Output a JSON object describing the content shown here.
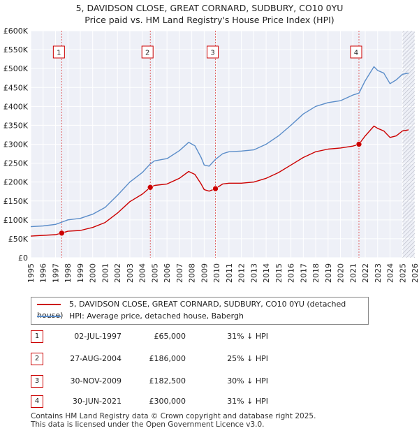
{
  "chart_data": {
    "type": "line",
    "title": "5, DAVIDSON CLOSE, GREAT CORNARD, SUDBURY, CO10 0YU",
    "subtitle": "Price paid vs. HM Land Registry's House Price Index (HPI)",
    "x_ticks": [
      "1995",
      "1996",
      "1997",
      "1998",
      "1999",
      "2000",
      "2001",
      "2002",
      "2003",
      "2004",
      "2005",
      "2006",
      "2007",
      "2008",
      "2009",
      "2010",
      "2011",
      "2012",
      "2013",
      "2014",
      "2015",
      "2016",
      "2017",
      "2018",
      "2019",
      "2020",
      "2021",
      "2022",
      "2023",
      "2024",
      "2025",
      "2026"
    ],
    "y_ticks": [
      "£0",
      "£50K",
      "£100K",
      "£150K",
      "£200K",
      "£250K",
      "£300K",
      "£350K",
      "£400K",
      "£450K",
      "£500K",
      "£550K",
      "£600K"
    ],
    "xlim": [
      1995,
      2026
    ],
    "ylim": [
      0,
      600000
    ],
    "series": [
      {
        "name": "5, DAVIDSON CLOSE, GREAT CORNARD, SUDBURY, CO10 0YU (detached house)",
        "color": "#cc0000",
        "points": [
          [
            1995.0,
            57000
          ],
          [
            1996.0,
            59000
          ],
          [
            1997.0,
            61000
          ],
          [
            1997.5,
            65000
          ],
          [
            1998.0,
            70000
          ],
          [
            1999.0,
            72000
          ],
          [
            2000.0,
            80000
          ],
          [
            2001.0,
            93000
          ],
          [
            2002.0,
            118000
          ],
          [
            2003.0,
            148000
          ],
          [
            2004.0,
            168000
          ],
          [
            2004.65,
            186000
          ],
          [
            2005.0,
            191000
          ],
          [
            2006.0,
            195000
          ],
          [
            2007.0,
            210000
          ],
          [
            2007.75,
            228000
          ],
          [
            2008.25,
            220000
          ],
          [
            2008.75,
            195000
          ],
          [
            2009.0,
            180000
          ],
          [
            2009.4,
            176000
          ],
          [
            2009.91,
            182500
          ],
          [
            2010.5,
            195000
          ],
          [
            2011.0,
            197000
          ],
          [
            2012.0,
            197000
          ],
          [
            2013.0,
            200000
          ],
          [
            2014.0,
            210000
          ],
          [
            2015.0,
            225000
          ],
          [
            2016.0,
            245000
          ],
          [
            2017.0,
            265000
          ],
          [
            2018.0,
            280000
          ],
          [
            2019.0,
            287000
          ],
          [
            2020.0,
            290000
          ],
          [
            2021.0,
            295000
          ],
          [
            2021.49,
            300000
          ],
          [
            2022.0,
            322000
          ],
          [
            2022.7,
            348000
          ],
          [
            2023.0,
            342000
          ],
          [
            2023.5,
            335000
          ],
          [
            2024.0,
            318000
          ],
          [
            2024.5,
            322000
          ],
          [
            2025.0,
            335000
          ],
          [
            2025.5,
            338000
          ]
        ]
      },
      {
        "name": "HPI: Average price, detached house, Babergh",
        "color": "#5b8dc9",
        "points": [
          [
            1995.0,
            82000
          ],
          [
            1996.0,
            84000
          ],
          [
            1997.0,
            88000
          ],
          [
            1997.5,
            94000
          ],
          [
            1998.0,
            100000
          ],
          [
            1999.0,
            104000
          ],
          [
            2000.0,
            115000
          ],
          [
            2001.0,
            133000
          ],
          [
            2002.0,
            165000
          ],
          [
            2003.0,
            200000
          ],
          [
            2004.0,
            225000
          ],
          [
            2004.65,
            248000
          ],
          [
            2005.0,
            256000
          ],
          [
            2006.0,
            262000
          ],
          [
            2007.0,
            283000
          ],
          [
            2007.75,
            305000
          ],
          [
            2008.25,
            296000
          ],
          [
            2008.75,
            265000
          ],
          [
            2009.0,
            245000
          ],
          [
            2009.4,
            242000
          ],
          [
            2009.91,
            260000
          ],
          [
            2010.5,
            275000
          ],
          [
            2011.0,
            280000
          ],
          [
            2012.0,
            282000
          ],
          [
            2013.0,
            285000
          ],
          [
            2014.0,
            300000
          ],
          [
            2015.0,
            322000
          ],
          [
            2016.0,
            350000
          ],
          [
            2017.0,
            380000
          ],
          [
            2018.0,
            400000
          ],
          [
            2019.0,
            410000
          ],
          [
            2020.0,
            415000
          ],
          [
            2021.0,
            430000
          ],
          [
            2021.49,
            435000
          ],
          [
            2022.0,
            468000
          ],
          [
            2022.7,
            505000
          ],
          [
            2023.0,
            495000
          ],
          [
            2023.5,
            488000
          ],
          [
            2024.0,
            460000
          ],
          [
            2024.5,
            470000
          ],
          [
            2025.0,
            485000
          ],
          [
            2025.5,
            488000
          ]
        ]
      }
    ],
    "sales": [
      {
        "label": "1",
        "x": 1997.5,
        "price": 65000
      },
      {
        "label": "2",
        "x": 2004.65,
        "price": 186000
      },
      {
        "label": "3",
        "x": 2009.91,
        "price": 182500
      },
      {
        "label": "4",
        "x": 2021.49,
        "price": 300000
      }
    ],
    "hatch_start": 2025.0
  },
  "legend": {
    "red_label": "5, DAVIDSON CLOSE, GREAT CORNARD, SUDBURY, CO10 0YU (detached house)",
    "blue_label": "HPI: Average price, detached house, Babergh"
  },
  "transactions": [
    {
      "num": "1",
      "date": "02-JUL-1997",
      "price": "£65,000",
      "hpi": "31% ↓ HPI"
    },
    {
      "num": "2",
      "date": "27-AUG-2004",
      "price": "£186,000",
      "hpi": "25% ↓ HPI"
    },
    {
      "num": "3",
      "date": "30-NOV-2009",
      "price": "£182,500",
      "hpi": "30% ↓ HPI"
    },
    {
      "num": "4",
      "date": "30-JUN-2021",
      "price": "£300,000",
      "hpi": "31% ↓ HPI"
    }
  ],
  "footer": {
    "line1": "Contains HM Land Registry data © Crown copyright and database right 2025.",
    "line2": "This data is licensed under the Open Government Licence v3.0."
  },
  "colors": {
    "red": "#cc0000",
    "blue": "#5b8dc9",
    "plot_bg": "#eef0f7",
    "grid": "#ffffff"
  }
}
